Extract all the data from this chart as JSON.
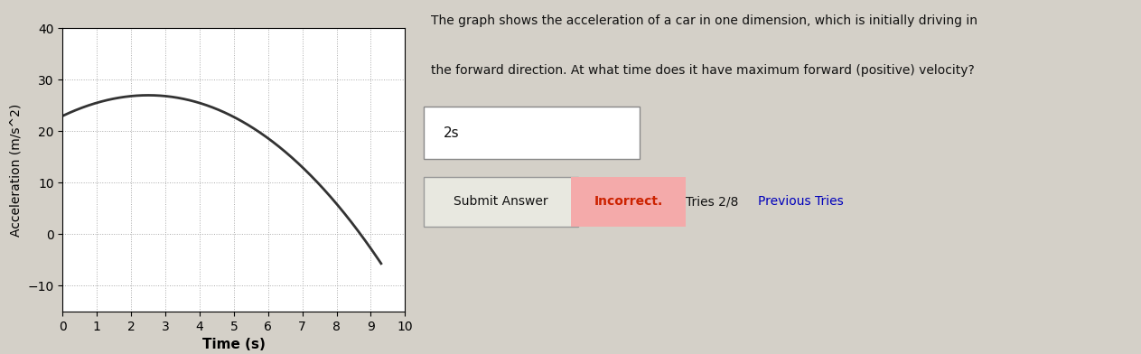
{
  "xlabel": "Time (s)",
  "ylabel": "Acceleration (m/s^2)",
  "xlim": [
    0,
    10
  ],
  "ylim": [
    -15,
    40
  ],
  "yticks": [
    -10,
    0,
    10,
    20,
    30,
    40
  ],
  "xticks": [
    0,
    1,
    2,
    3,
    4,
    5,
    6,
    7,
    8,
    9,
    10
  ],
  "curve_color": "#333333",
  "curve_linewidth": 2.0,
  "grid_color": "#aaaaaa",
  "bg_color": "#ffffff",
  "fig_bg": "#d4d0c8",
  "text_line1": "The graph shows the acceleration of a car in one dimension, which is initially driving in",
  "text_line2": "the forward direction. At what time does it have maximum forward (positive) velocity?",
  "answer_text": "2s",
  "submit_button_text": "Submit Answer",
  "incorrect_text": "Incorrect.",
  "tries_text": "Tries 2/8 ",
  "prev_tries_text": "Previous Tries",
  "incorrect_bg": "#f4aaaa",
  "submit_bg": "#e8e8e0",
  "a0": 23.0,
  "peak_t": 2.5,
  "peak_val": 27.0,
  "zero_t": 8.7,
  "end_t": 9.3
}
